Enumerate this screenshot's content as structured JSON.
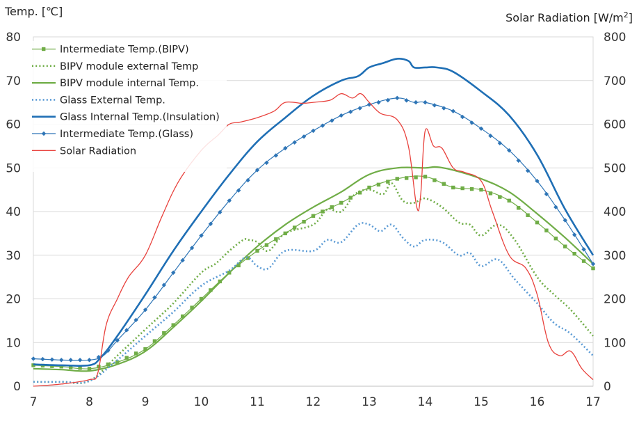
{
  "chart_data": {
    "type": "line",
    "title": "",
    "ylabel": "Temp. [℃]",
    "y2label": "Solar Radiation [W/m²]",
    "xlabel": "",
    "xlim": [
      7,
      17
    ],
    "ylim": [
      0,
      80
    ],
    "y2lim": [
      0,
      800
    ],
    "xticks": [
      "7",
      "8",
      "9",
      "10",
      "11",
      "12",
      "13",
      "14",
      "15",
      "16",
      "17"
    ],
    "yticks": [
      "0",
      "10",
      "20",
      "30",
      "40",
      "50",
      "60",
      "70",
      "80"
    ],
    "y2ticks": [
      "0",
      "100",
      "200",
      "300",
      "400",
      "500",
      "600",
      "700",
      "800"
    ],
    "legend_position": "top-left",
    "series": [
      {
        "name": "Intermediate Temp.(BIPV)",
        "axis": "left",
        "color": "#70ad47",
        "style": "solid-square",
        "x": [
          7.0,
          7.5,
          8.0,
          8.5,
          9.0,
          9.5,
          10.0,
          10.5,
          11.0,
          11.5,
          12.0,
          12.5,
          13.0,
          13.5,
          14.0,
          14.5,
          15.0,
          15.5,
          16.0,
          16.5,
          17.0
        ],
        "y": [
          4.8,
          4.5,
          4.0,
          5.5,
          8.5,
          14.0,
          20.0,
          26.0,
          31.0,
          35.0,
          39.0,
          42.0,
          45.5,
          47.5,
          48.0,
          45.5,
          45.0,
          42.5,
          37.5,
          32.0,
          27.0
        ]
      },
      {
        "name": "BIPV module external Temp",
        "axis": "left",
        "color": "#70ad47",
        "style": "dotted",
        "x": [
          7.0,
          7.5,
          8.0,
          8.5,
          9.0,
          9.5,
          10.0,
          10.25,
          10.5,
          10.75,
          10.85,
          11.0,
          11.2,
          11.5,
          12.0,
          12.25,
          12.5,
          12.75,
          13.0,
          13.25,
          13.4,
          13.6,
          13.8,
          14.0,
          14.3,
          14.6,
          14.8,
          15.0,
          15.3,
          15.6,
          16.0,
          16.3,
          16.6,
          17.0
        ],
        "y": [
          1.0,
          1.0,
          1.2,
          7.0,
          13.0,
          19.0,
          26.0,
          28.0,
          31.0,
          33.5,
          33.5,
          33.0,
          31.0,
          35.0,
          37.0,
          40.5,
          40.0,
          44.0,
          45.0,
          44.0,
          46.5,
          42.5,
          42.0,
          43.0,
          41.0,
          37.5,
          37.0,
          34.5,
          37.0,
          33.5,
          25.0,
          21.0,
          17.5,
          11.5
        ]
      },
      {
        "name": "BIPV module internal Temp.",
        "axis": "left",
        "color": "#70ad47",
        "style": "solid",
        "x": [
          7.0,
          7.5,
          8.0,
          8.5,
          9.0,
          9.5,
          10.0,
          10.5,
          11.0,
          11.5,
          12.0,
          12.5,
          13.0,
          13.5,
          14.0,
          14.2,
          14.5,
          15.0,
          15.5,
          16.0,
          16.5,
          17.0
        ],
        "y": [
          4.0,
          3.8,
          3.5,
          5.0,
          8.0,
          13.5,
          19.5,
          26.0,
          32.0,
          37.0,
          41.0,
          44.5,
          48.5,
          50.0,
          50.0,
          50.2,
          49.5,
          47.5,
          44.5,
          39.5,
          34.0,
          28.0
        ]
      },
      {
        "name": "Glass External Temp.",
        "axis": "left",
        "color": "#5b9bd5",
        "style": "dotted",
        "x": [
          7.0,
          7.5,
          8.0,
          8.5,
          9.0,
          9.5,
          10.0,
          10.5,
          10.8,
          11.0,
          11.2,
          11.5,
          12.0,
          12.25,
          12.5,
          12.8,
          13.0,
          13.2,
          13.4,
          13.6,
          13.8,
          14.0,
          14.3,
          14.6,
          14.8,
          15.0,
          15.3,
          15.6,
          16.0,
          16.3,
          16.6,
          17.0
        ],
        "y": [
          1.0,
          1.0,
          1.2,
          6.0,
          11.5,
          17.0,
          23.0,
          26.5,
          29.5,
          27.5,
          27.0,
          31.0,
          31.0,
          33.5,
          33.0,
          37.0,
          37.0,
          35.5,
          37.0,
          34.0,
          32.0,
          33.5,
          33.0,
          30.0,
          30.5,
          27.5,
          29.0,
          24.5,
          19.0,
          14.5,
          12.0,
          7.0
        ]
      },
      {
        "name": "Glass Internal Temp.(Insulation)",
        "axis": "left",
        "color": "#1f6fb5",
        "style": "solid-thick",
        "x": [
          7.0,
          7.5,
          8.0,
          8.2,
          8.5,
          9.0,
          9.5,
          10.0,
          10.5,
          11.0,
          11.5,
          12.0,
          12.5,
          12.8,
          13.0,
          13.25,
          13.5,
          13.7,
          13.8,
          14.0,
          14.2,
          14.5,
          15.0,
          15.5,
          16.0,
          16.5,
          17.0
        ],
        "y": [
          5.0,
          4.8,
          4.8,
          6.5,
          11.5,
          21.0,
          31.0,
          40.0,
          48.5,
          56.0,
          61.5,
          66.5,
          70.0,
          71.0,
          73.0,
          74.0,
          75.0,
          74.5,
          73.0,
          73.0,
          73.0,
          72.0,
          67.5,
          62.0,
          53.0,
          40.5,
          30.0
        ]
      },
      {
        "name": "Intermediate Temp.(Glass)",
        "axis": "left",
        "color": "#2e75b6",
        "style": "solid-diamond",
        "x": [
          7.0,
          7.5,
          8.0,
          8.25,
          8.5,
          9.0,
          9.5,
          10.0,
          10.5,
          11.0,
          11.5,
          12.0,
          12.5,
          13.0,
          13.5,
          13.8,
          14.0,
          14.5,
          15.0,
          15.5,
          16.0,
          16.5,
          17.0
        ],
        "y": [
          6.3,
          6.0,
          6.0,
          7.0,
          10.5,
          17.5,
          26.0,
          34.5,
          42.5,
          49.5,
          54.5,
          58.5,
          62.0,
          64.5,
          66.0,
          65.0,
          65.0,
          63.0,
          59.0,
          54.0,
          47.0,
          38.0,
          28.0
        ]
      },
      {
        "name": "Solar Radiation",
        "axis": "right",
        "color": "#e8413c",
        "style": "solid-thin",
        "x": [
          7.0,
          7.5,
          8.0,
          8.15,
          8.3,
          8.5,
          8.7,
          9.0,
          9.3,
          9.6,
          10.0,
          10.3,
          10.5,
          10.7,
          11.0,
          11.3,
          11.5,
          11.8,
          12.0,
          12.3,
          12.5,
          12.7,
          12.85,
          13.0,
          13.2,
          13.5,
          13.7,
          13.85,
          13.92,
          14.0,
          14.15,
          14.3,
          14.5,
          14.7,
          15.0,
          15.2,
          15.5,
          15.8,
          16.0,
          16.2,
          16.4,
          16.6,
          16.8,
          17.0
        ],
        "y": [
          0,
          5,
          15,
          30,
          140,
          200,
          250,
          300,
          390,
          470,
          540,
          575,
          600,
          605,
          615,
          630,
          650,
          648,
          650,
          655,
          670,
          660,
          670,
          650,
          625,
          610,
          550,
          410,
          440,
          585,
          550,
          545,
          500,
          490,
          470,
          400,
          300,
          270,
          210,
          100,
          70,
          80,
          40,
          15
        ]
      }
    ]
  }
}
